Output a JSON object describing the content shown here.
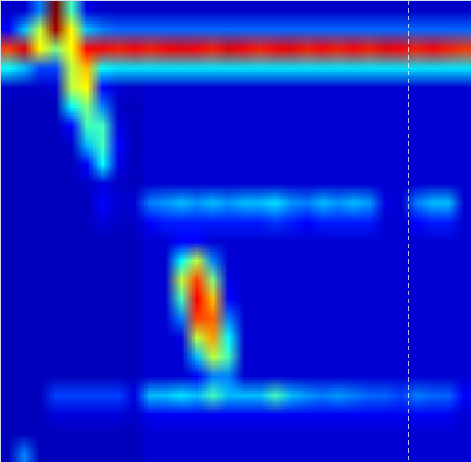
{
  "chart_data": {
    "type": "heatmap",
    "xlim": [
      0,
      30
    ],
    "ylim": [
      24,
      0
    ],
    "tick_labels": false,
    "value_range": [
      0,
      100
    ],
    "markers": [
      11,
      26
    ],
    "cells": [
      [
        10,
        12,
        30,
        100,
        45,
        15,
        10,
        10,
        10,
        10,
        10,
        10,
        10,
        10,
        10,
        10,
        10,
        10,
        10,
        10,
        10,
        10,
        10,
        10,
        10,
        10,
        10,
        10,
        10,
        10
      ],
      [
        20,
        35,
        55,
        95,
        60,
        35,
        30,
        28,
        28,
        28,
        28,
        28,
        28,
        28,
        28,
        28,
        28,
        28,
        28,
        28,
        28,
        28,
        28,
        28,
        28,
        28,
        28,
        28,
        28,
        28
      ],
      [
        75,
        85,
        60,
        50,
        60,
        80,
        80,
        78,
        80,
        78,
        80,
        82,
        80,
        78,
        84,
        80,
        78,
        80,
        82,
        78,
        80,
        78,
        80,
        78,
        82,
        80,
        78,
        80,
        78,
        76
      ],
      [
        40,
        35,
        25,
        25,
        55,
        65,
        40,
        38,
        38,
        38,
        38,
        38,
        38,
        38,
        38,
        38,
        38,
        38,
        38,
        38,
        38,
        38,
        38,
        38,
        38,
        38,
        38,
        38,
        38,
        38
      ],
      [
        10,
        10,
        10,
        12,
        55,
        60,
        20,
        12,
        10,
        12,
        12,
        12,
        12,
        12,
        12,
        12,
        12,
        12,
        12,
        12,
        12,
        12,
        12,
        12,
        12,
        12,
        12,
        12,
        12,
        12
      ],
      [
        8,
        8,
        8,
        8,
        40,
        50,
        30,
        10,
        8,
        12,
        12,
        12,
        12,
        12,
        12,
        12,
        12,
        12,
        12,
        12,
        12,
        12,
        12,
        12,
        12,
        12,
        12,
        12,
        12,
        12
      ],
      [
        8,
        8,
        8,
        8,
        20,
        45,
        45,
        15,
        8,
        12,
        12,
        12,
        12,
        12,
        12,
        12,
        12,
        12,
        12,
        12,
        12,
        12,
        12,
        12,
        12,
        12,
        12,
        12,
        12,
        12
      ],
      [
        8,
        8,
        8,
        8,
        10,
        35,
        45,
        20,
        8,
        12,
        12,
        12,
        12,
        12,
        12,
        12,
        12,
        12,
        12,
        12,
        12,
        12,
        12,
        12,
        12,
        12,
        12,
        12,
        12,
        12
      ],
      [
        8,
        8,
        8,
        8,
        8,
        20,
        40,
        15,
        8,
        12,
        12,
        12,
        12,
        12,
        12,
        12,
        12,
        12,
        12,
        12,
        12,
        12,
        12,
        12,
        12,
        12,
        12,
        12,
        12,
        12
      ],
      [
        8,
        8,
        8,
        8,
        8,
        10,
        15,
        10,
        8,
        12,
        12,
        12,
        12,
        12,
        12,
        12,
        12,
        12,
        12,
        12,
        12,
        12,
        12,
        12,
        12,
        12,
        12,
        12,
        12,
        12
      ],
      [
        8,
        8,
        8,
        8,
        8,
        8,
        20,
        12,
        12,
        30,
        32,
        35,
        32,
        35,
        32,
        35,
        35,
        38,
        32,
        30,
        35,
        32,
        35,
        32,
        15,
        12,
        30,
        35,
        35,
        12
      ],
      [
        8,
        8,
        8,
        8,
        8,
        8,
        14,
        10,
        10,
        20,
        22,
        22,
        22,
        22,
        22,
        22,
        22,
        24,
        22,
        20,
        22,
        22,
        22,
        22,
        12,
        12,
        20,
        22,
        22,
        12
      ],
      [
        8,
        8,
        8,
        8,
        8,
        8,
        8,
        8,
        8,
        12,
        12,
        20,
        20,
        12,
        12,
        12,
        12,
        12,
        12,
        12,
        12,
        12,
        12,
        12,
        12,
        12,
        12,
        12,
        12,
        12
      ],
      [
        8,
        8,
        8,
        8,
        8,
        8,
        8,
        8,
        8,
        12,
        12,
        40,
        55,
        30,
        12,
        12,
        12,
        12,
        12,
        12,
        12,
        12,
        12,
        12,
        12,
        12,
        12,
        12,
        12,
        12
      ],
      [
        8,
        8,
        8,
        8,
        8,
        8,
        8,
        8,
        8,
        12,
        12,
        55,
        75,
        50,
        15,
        12,
        12,
        12,
        12,
        12,
        12,
        12,
        12,
        12,
        12,
        12,
        12,
        12,
        12,
        12
      ],
      [
        8,
        8,
        8,
        8,
        8,
        8,
        8,
        8,
        8,
        12,
        12,
        45,
        80,
        65,
        20,
        12,
        12,
        12,
        12,
        12,
        12,
        12,
        12,
        12,
        12,
        12,
        12,
        12,
        12,
        12
      ],
      [
        8,
        8,
        8,
        8,
        8,
        8,
        8,
        8,
        8,
        12,
        12,
        30,
        75,
        72,
        30,
        12,
        12,
        12,
        12,
        12,
        12,
        12,
        12,
        12,
        12,
        12,
        12,
        12,
        12,
        12
      ],
      [
        8,
        8,
        8,
        8,
        8,
        8,
        8,
        8,
        8,
        12,
        12,
        15,
        55,
        68,
        40,
        12,
        12,
        12,
        12,
        12,
        12,
        12,
        12,
        12,
        12,
        12,
        12,
        12,
        12,
        12
      ],
      [
        8,
        8,
        8,
        8,
        8,
        8,
        8,
        8,
        8,
        12,
        12,
        12,
        35,
        55,
        45,
        12,
        12,
        12,
        12,
        12,
        12,
        12,
        12,
        12,
        12,
        12,
        12,
        12,
        12,
        12
      ],
      [
        8,
        8,
        8,
        8,
        8,
        8,
        8,
        8,
        8,
        12,
        12,
        12,
        18,
        30,
        30,
        12,
        12,
        12,
        12,
        12,
        12,
        12,
        12,
        12,
        12,
        12,
        12,
        12,
        12,
        12
      ],
      [
        8,
        8,
        8,
        25,
        25,
        25,
        25,
        25,
        15,
        35,
        35,
        38,
        35,
        45,
        35,
        35,
        35,
        45,
        35,
        32,
        30,
        32,
        30,
        28,
        28,
        25,
        30,
        28,
        28,
        20
      ],
      [
        8,
        8,
        8,
        14,
        14,
        14,
        14,
        14,
        10,
        18,
        18,
        18,
        18,
        18,
        18,
        18,
        18,
        18,
        18,
        18,
        18,
        18,
        18,
        18,
        18,
        18,
        18,
        18,
        18,
        12
      ],
      [
        8,
        8,
        8,
        8,
        8,
        8,
        8,
        8,
        8,
        12,
        12,
        12,
        12,
        12,
        12,
        12,
        12,
        12,
        12,
        12,
        12,
        12,
        12,
        12,
        12,
        12,
        12,
        12,
        12,
        12
      ],
      [
        8,
        30,
        8,
        8,
        8,
        8,
        8,
        8,
        8,
        12,
        12,
        12,
        12,
        12,
        12,
        12,
        12,
        12,
        12,
        12,
        12,
        12,
        12,
        12,
        12,
        12,
        12,
        12,
        12,
        12
      ]
    ]
  }
}
